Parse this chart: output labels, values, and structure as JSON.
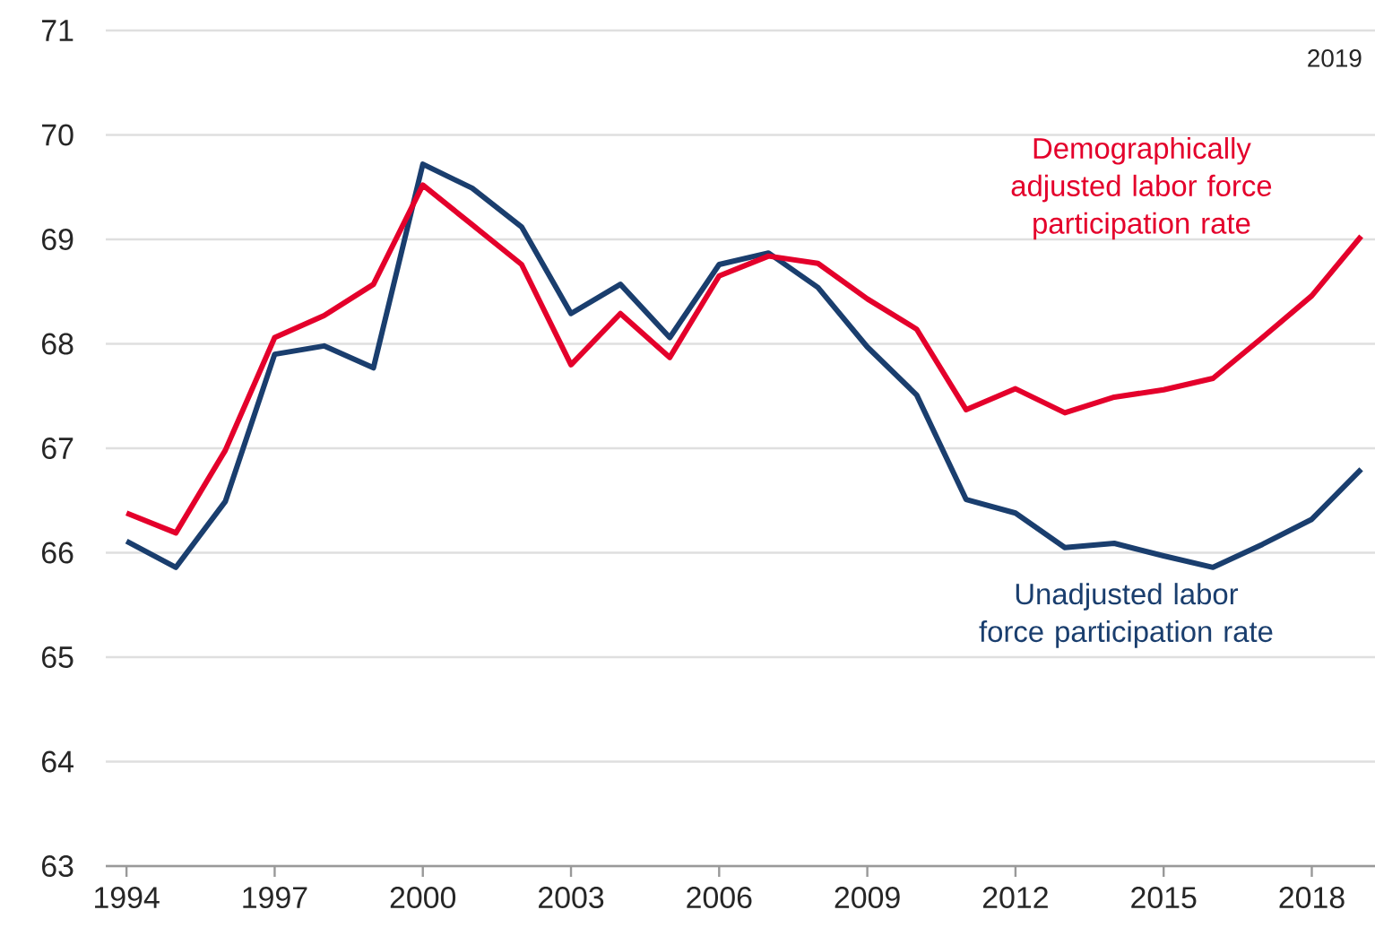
{
  "chart_data": {
    "type": "line",
    "x": [
      1994,
      1995,
      1996,
      1997,
      1998,
      1999,
      2000,
      2001,
      2002,
      2003,
      2004,
      2005,
      2006,
      2007,
      2008,
      2009,
      2010,
      2011,
      2012,
      2013,
      2014,
      2015,
      2016,
      2017,
      2018,
      2019
    ],
    "series": [
      {
        "name": "Unadjusted labor force participation rate",
        "color": "#1a3e6e",
        "values": [
          66.11,
          65.86,
          66.49,
          67.9,
          67.98,
          67.77,
          69.72,
          69.49,
          69.12,
          68.29,
          68.57,
          68.06,
          68.76,
          68.87,
          68.54,
          67.97,
          67.51,
          66.51,
          66.38,
          66.05,
          66.09,
          65.97,
          65.86,
          66.08,
          66.32,
          66.8
        ]
      },
      {
        "name": "Demographically adjusted labor force participation rate",
        "color": "#e4002b",
        "values": [
          66.38,
          66.19,
          66.98,
          68.06,
          68.27,
          68.57,
          69.52,
          69.14,
          68.76,
          67.8,
          68.29,
          67.87,
          68.65,
          68.84,
          68.77,
          68.43,
          68.14,
          67.37,
          67.57,
          67.34,
          67.49,
          67.56,
          67.67,
          68.06,
          68.46,
          69.03
        ]
      }
    ],
    "xlim": [
      1993.58,
      2019.28
    ],
    "xticks": [
      1994,
      1997,
      2000,
      2003,
      2006,
      2009,
      2012,
      2015,
      2018
    ],
    "ylim": [
      63,
      71
    ],
    "yticks": [
      63,
      64,
      65,
      66,
      67,
      68,
      69,
      70,
      71
    ],
    "grid": "y",
    "annotations": [
      "2019"
    ]
  }
}
